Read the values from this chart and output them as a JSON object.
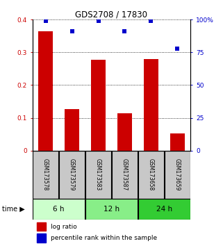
{
  "title": "GDS2708 / 17830",
  "samples": [
    "GSM173578",
    "GSM173579",
    "GSM173583",
    "GSM173587",
    "GSM173658",
    "GSM173659"
  ],
  "log_ratio": [
    0.365,
    0.127,
    0.278,
    0.114,
    0.279,
    0.052
  ],
  "percentile_rank": [
    99,
    91,
    99,
    91,
    99,
    78
  ],
  "bar_color": "#cc0000",
  "dot_color": "#0000cc",
  "time_groups": [
    {
      "label": "6 h",
      "samples": [
        0,
        1
      ],
      "color": "#ccffcc"
    },
    {
      "label": "12 h",
      "samples": [
        2,
        3
      ],
      "color": "#88ee88"
    },
    {
      "label": "24 h",
      "samples": [
        4,
        5
      ],
      "color": "#33cc33"
    }
  ],
  "ylim_left": [
    0,
    0.4
  ],
  "ylim_right": [
    0,
    100
  ],
  "yticks_left": [
    0,
    0.1,
    0.2,
    0.3,
    0.4
  ],
  "ytick_labels_left": [
    "0",
    "0.1",
    "0.2",
    "0.3",
    "0.4"
  ],
  "yticks_right": [
    0,
    25,
    50,
    75,
    100
  ],
  "ytick_labels_right": [
    "0",
    "25",
    "50",
    "75",
    "100%"
  ],
  "background_color": "#ffffff",
  "sample_box_color": "#c8c8c8",
  "legend_log_ratio": "log ratio",
  "legend_percentile": "percentile rank within the sample",
  "time_label": "time"
}
